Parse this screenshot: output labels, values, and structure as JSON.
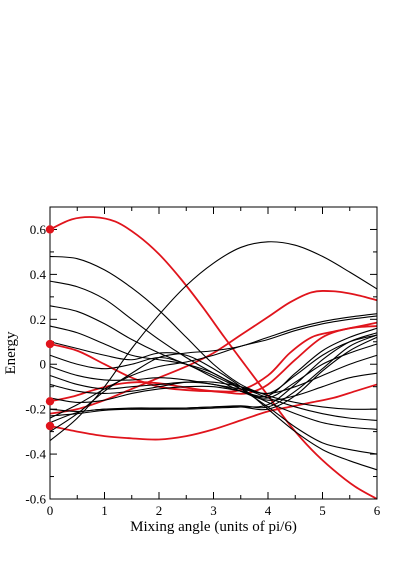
{
  "chart_data": {
    "type": "line",
    "title": "",
    "xlabel": "Mixing angle (units of pi/6)",
    "ylabel": "Energy",
    "xlim": [
      0,
      6
    ],
    "ylim": [
      -0.6,
      0.7
    ],
    "xticks": [
      "0",
      "1",
      "2",
      "3",
      "4",
      "5",
      "6"
    ],
    "yticks": [
      "-0.6",
      "-0.4",
      "-0.2",
      "0",
      "0.2",
      "0.4",
      "0.6"
    ],
    "grid": false,
    "legend": "none",
    "colors": {
      "black": "#000000",
      "red": "#e0141c"
    },
    "markers": {
      "color": "#e0141c",
      "points": [
        {
          "x": 0,
          "y": 0.6
        },
        {
          "x": 0,
          "y": 0.09
        },
        {
          "x": 0,
          "y": -0.165
        },
        {
          "x": 0,
          "y": -0.275
        }
      ]
    },
    "series": [
      {
        "color": "#e0141c",
        "points": [
          [
            0,
            0.6
          ],
          [
            0.4,
            0.645
          ],
          [
            0.8,
            0.655
          ],
          [
            1.2,
            0.635
          ],
          [
            1.6,
            0.575
          ],
          [
            2,
            0.49
          ],
          [
            2.4,
            0.38
          ],
          [
            2.8,
            0.255
          ],
          [
            3.2,
            0.12
          ],
          [
            3.6,
            -0.01
          ],
          [
            4,
            -0.14
          ],
          [
            4.4,
            -0.27
          ],
          [
            4.8,
            -0.38
          ],
          [
            5.2,
            -0.47
          ],
          [
            5.6,
            -0.545
          ],
          [
            6,
            -0.6
          ]
        ]
      },
      {
        "color": "#e0141c",
        "points": [
          [
            0,
            0.09
          ],
          [
            0.5,
            0.06
          ],
          [
            1,
            0.0
          ],
          [
            1.5,
            -0.06
          ],
          [
            2,
            -0.1
          ],
          [
            2.5,
            -0.115
          ],
          [
            3,
            -0.12
          ],
          [
            3.5,
            -0.115
          ],
          [
            4,
            -0.05
          ],
          [
            4.4,
            0.05
          ],
          [
            4.8,
            0.12
          ],
          [
            5.2,
            0.145
          ],
          [
            5.6,
            0.165
          ],
          [
            6,
            0.185
          ]
        ]
      },
      {
        "color": "#e0141c",
        "points": [
          [
            0,
            -0.165
          ],
          [
            0.4,
            -0.145
          ],
          [
            0.8,
            -0.115
          ],
          [
            1.2,
            -0.09
          ],
          [
            1.6,
            -0.08
          ],
          [
            2,
            -0.085
          ],
          [
            2.4,
            -0.1
          ],
          [
            2.8,
            -0.115
          ],
          [
            3.2,
            -0.125
          ],
          [
            3.6,
            -0.13
          ],
          [
            4,
            -0.09
          ],
          [
            4.5,
            0.02
          ],
          [
            5,
            0.12
          ],
          [
            5.5,
            0.16
          ],
          [
            6,
            0.17
          ]
        ]
      },
      {
        "color": "#e0141c",
        "points": [
          [
            0,
            -0.275
          ],
          [
            0.5,
            -0.3
          ],
          [
            1,
            -0.32
          ],
          [
            1.5,
            -0.33
          ],
          [
            2,
            -0.335
          ],
          [
            2.5,
            -0.32
          ],
          [
            3,
            -0.29
          ],
          [
            3.5,
            -0.25
          ],
          [
            4,
            -0.21
          ],
          [
            4.4,
            -0.19
          ],
          [
            4.8,
            -0.17
          ],
          [
            5.2,
            -0.15
          ],
          [
            5.6,
            -0.12
          ],
          [
            6,
            -0.09
          ]
        ]
      },
      {
        "color": "#e0141c",
        "points": [
          [
            0,
            -0.22
          ],
          [
            0.5,
            -0.2
          ],
          [
            1,
            -0.16
          ],
          [
            1.5,
            -0.11
          ],
          [
            2,
            -0.06
          ],
          [
            2.5,
            -0.01
          ],
          [
            3,
            0.05
          ],
          [
            3.5,
            0.13
          ],
          [
            4,
            0.21
          ],
          [
            4.4,
            0.275
          ],
          [
            4.8,
            0.32
          ],
          [
            5.2,
            0.325
          ],
          [
            5.6,
            0.31
          ],
          [
            6,
            0.285
          ]
        ]
      },
      {
        "color": "#000000",
        "points": [
          [
            0,
            0.48
          ],
          [
            0.5,
            0.47
          ],
          [
            1,
            0.42
          ],
          [
            1.5,
            0.34
          ],
          [
            2,
            0.24
          ],
          [
            2.5,
            0.12
          ],
          [
            3,
            0.0
          ],
          [
            3.5,
            -0.09
          ],
          [
            4,
            -0.14
          ],
          [
            4.5,
            -0.17
          ],
          [
            5,
            -0.19
          ],
          [
            5.5,
            -0.2
          ],
          [
            6,
            -0.2
          ]
        ]
      },
      {
        "color": "#000000",
        "points": [
          [
            0,
            0.37
          ],
          [
            0.5,
            0.345
          ],
          [
            1,
            0.29
          ],
          [
            1.5,
            0.2
          ],
          [
            2,
            0.11
          ],
          [
            2.5,
            0.03
          ],
          [
            3,
            -0.04
          ],
          [
            3.5,
            -0.1
          ],
          [
            4,
            -0.15
          ],
          [
            4.5,
            -0.19
          ],
          [
            5,
            -0.22
          ],
          [
            5.5,
            -0.24
          ],
          [
            6,
            -0.25
          ]
        ]
      },
      {
        "color": "#000000",
        "points": [
          [
            0,
            0.26
          ],
          [
            0.5,
            0.235
          ],
          [
            1,
            0.18
          ],
          [
            1.5,
            0.11
          ],
          [
            2,
            0.05
          ],
          [
            2.5,
            0.0
          ],
          [
            3,
            -0.05
          ],
          [
            3.5,
            -0.11
          ],
          [
            4,
            -0.17
          ],
          [
            4.5,
            -0.22
          ],
          [
            5,
            -0.26
          ],
          [
            5.5,
            -0.28
          ],
          [
            6,
            -0.29
          ]
        ]
      },
      {
        "color": "#000000",
        "points": [
          [
            0,
            0.17
          ],
          [
            0.5,
            0.14
          ],
          [
            1,
            0.09
          ],
          [
            1.5,
            0.04
          ],
          [
            2,
            0.02
          ],
          [
            2.5,
            0.0
          ],
          [
            3,
            -0.04
          ],
          [
            3.5,
            -0.11
          ],
          [
            4,
            -0.19
          ],
          [
            4.5,
            -0.28
          ],
          [
            5,
            -0.35
          ],
          [
            5.5,
            -0.38
          ],
          [
            6,
            -0.4
          ]
        ]
      },
      {
        "color": "#000000",
        "points": [
          [
            0,
            0.1
          ],
          [
            0.5,
            0.07
          ],
          [
            1,
            0.04
          ],
          [
            1.5,
            0.02
          ],
          [
            2,
            0.05
          ],
          [
            2.5,
            0.04
          ],
          [
            3,
            -0.02
          ],
          [
            3.5,
            -0.1
          ],
          [
            4,
            -0.2
          ],
          [
            4.5,
            -0.3
          ],
          [
            5,
            -0.38
          ],
          [
            5.5,
            -0.43
          ],
          [
            6,
            -0.47
          ]
        ]
      },
      {
        "color": "#000000",
        "points": [
          [
            0,
            0.04
          ],
          [
            0.5,
            0.0
          ],
          [
            1,
            -0.02
          ],
          [
            1.5,
            0.0
          ],
          [
            2,
            0.03
          ],
          [
            2.5,
            0.0
          ],
          [
            3,
            -0.06
          ],
          [
            3.5,
            -0.12
          ],
          [
            4,
            -0.16
          ],
          [
            4.5,
            -0.14
          ],
          [
            5,
            -0.1
          ],
          [
            5.5,
            -0.06
          ],
          [
            6,
            -0.04
          ]
        ]
      },
      {
        "color": "#000000",
        "points": [
          [
            0,
            -0.01
          ],
          [
            0.5,
            -0.05
          ],
          [
            1,
            -0.07
          ],
          [
            1.5,
            -0.07
          ],
          [
            2,
            -0.06
          ],
          [
            2.5,
            -0.07
          ],
          [
            3,
            -0.09
          ],
          [
            3.5,
            -0.11
          ],
          [
            4,
            -0.13
          ],
          [
            4.5,
            -0.1
          ],
          [
            5,
            -0.05
          ],
          [
            5.5,
            0.0
          ],
          [
            6,
            0.04
          ]
        ]
      },
      {
        "color": "#000000",
        "points": [
          [
            0,
            -0.05
          ],
          [
            0.5,
            -0.09
          ],
          [
            1,
            -0.11
          ],
          [
            1.5,
            -0.1
          ],
          [
            2,
            -0.09
          ],
          [
            2.5,
            -0.08
          ],
          [
            3,
            -0.09
          ],
          [
            3.5,
            -0.12
          ],
          [
            4,
            -0.15
          ],
          [
            4.5,
            -0.08
          ],
          [
            5,
            0.0
          ],
          [
            5.5,
            0.05
          ],
          [
            6,
            0.09
          ]
        ]
      },
      {
        "color": "#000000",
        "points": [
          [
            0,
            -0.09
          ],
          [
            0.5,
            -0.12
          ],
          [
            1,
            -0.13
          ],
          [
            1.5,
            -0.12
          ],
          [
            2,
            -0.1
          ],
          [
            2.5,
            -0.08
          ],
          [
            3,
            -0.08
          ],
          [
            3.5,
            -0.1
          ],
          [
            4,
            -0.13
          ],
          [
            4.5,
            -0.05
          ],
          [
            5,
            0.04
          ],
          [
            5.5,
            0.1
          ],
          [
            6,
            0.13
          ]
        ]
      },
      {
        "color": "#000000",
        "points": [
          [
            0,
            -0.15
          ],
          [
            0.5,
            -0.17
          ],
          [
            1,
            -0.16
          ],
          [
            1.5,
            -0.13
          ],
          [
            2,
            -0.11
          ],
          [
            2.5,
            -0.1
          ],
          [
            3,
            -0.1
          ],
          [
            3.5,
            -0.12
          ],
          [
            4,
            -0.14
          ],
          [
            4.5,
            -0.04
          ],
          [
            5,
            0.06
          ],
          [
            5.5,
            0.12
          ],
          [
            6,
            0.16
          ]
        ]
      },
      {
        "color": "#000000",
        "points": [
          [
            0,
            -0.2
          ],
          [
            0.5,
            -0.21
          ],
          [
            1,
            -0.2
          ],
          [
            1.5,
            -0.2
          ],
          [
            2,
            -0.2
          ],
          [
            2.5,
            -0.2
          ],
          [
            3,
            -0.195
          ],
          [
            3.5,
            -0.19
          ],
          [
            4,
            -0.18
          ],
          [
            4.5,
            -0.09
          ],
          [
            5,
            0.02
          ],
          [
            5.5,
            0.1
          ],
          [
            6,
            0.14
          ]
        ]
      },
      {
        "color": "#000000",
        "points": [
          [
            0,
            -0.23
          ],
          [
            0.5,
            -0.22
          ],
          [
            1,
            -0.205
          ],
          [
            1.5,
            -0.2
          ],
          [
            2,
            -0.2
          ],
          [
            2.5,
            -0.195
          ],
          [
            3,
            -0.19
          ],
          [
            3.5,
            -0.185
          ],
          [
            4,
            -0.19
          ],
          [
            4.5,
            -0.12
          ],
          [
            5,
            -0.02
          ],
          [
            5.5,
            0.08
          ],
          [
            6,
            0.13
          ]
        ]
      },
      {
        "color": "#000000",
        "points": [
          [
            0,
            -0.26
          ],
          [
            0.5,
            -0.215
          ],
          [
            1,
            -0.2
          ],
          [
            1.5,
            -0.195
          ],
          [
            2,
            -0.195
          ],
          [
            2.5,
            -0.195
          ],
          [
            3,
            -0.19
          ],
          [
            3.5,
            -0.19
          ],
          [
            4,
            -0.2
          ],
          [
            4.5,
            -0.14
          ],
          [
            5,
            -0.03
          ],
          [
            5.5,
            0.06
          ],
          [
            6,
            0.12
          ]
        ]
      },
      {
        "color": "#000000",
        "points": [
          [
            0,
            -0.3
          ],
          [
            0.5,
            -0.22
          ],
          [
            1,
            -0.12
          ],
          [
            1.5,
            -0.04
          ],
          [
            2,
            0.03
          ],
          [
            2.5,
            0.05
          ],
          [
            3,
            0.06
          ],
          [
            3.5,
            0.08
          ],
          [
            4,
            0.12
          ],
          [
            4.5,
            0.16
          ],
          [
            5,
            0.19
          ],
          [
            5.5,
            0.21
          ],
          [
            6,
            0.225
          ]
        ]
      },
      {
        "color": "#000000",
        "points": [
          [
            0,
            -0.34
          ],
          [
            0.5,
            -0.24
          ],
          [
            1,
            -0.1
          ],
          [
            1.5,
            0.07
          ],
          [
            2,
            0.22
          ],
          [
            2.5,
            0.35
          ],
          [
            3,
            0.45
          ],
          [
            3.5,
            0.52
          ],
          [
            4,
            0.545
          ],
          [
            4.5,
            0.53
          ],
          [
            5,
            0.48
          ],
          [
            5.5,
            0.41
          ],
          [
            6,
            0.335
          ]
        ]
      },
      {
        "color": "#000000",
        "points": [
          [
            0,
            -0.24
          ],
          [
            0.5,
            -0.18
          ],
          [
            1,
            -0.11
          ],
          [
            1.5,
            -0.05
          ],
          [
            2,
            -0.01
          ],
          [
            2.5,
            0.01
          ],
          [
            3,
            0.04
          ],
          [
            3.5,
            0.08
          ],
          [
            4,
            0.11
          ],
          [
            4.5,
            0.15
          ],
          [
            5,
            0.18
          ],
          [
            5.5,
            0.2
          ],
          [
            6,
            0.215
          ]
        ]
      }
    ]
  }
}
